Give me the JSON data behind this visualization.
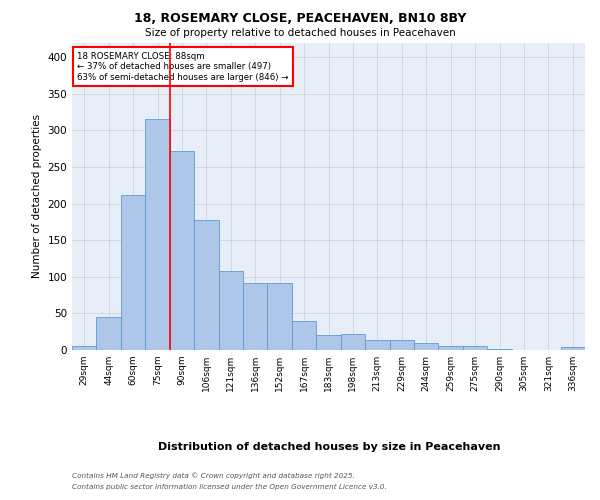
{
  "title_line1": "18, ROSEMARY CLOSE, PEACEHAVEN, BN10 8BY",
  "title_line2": "Size of property relative to detached houses in Peacehaven",
  "xlabel": "Distribution of detached houses by size in Peacehaven",
  "ylabel": "Number of detached properties",
  "categories": [
    "29sqm",
    "44sqm",
    "60sqm",
    "75sqm",
    "90sqm",
    "106sqm",
    "121sqm",
    "136sqm",
    "152sqm",
    "167sqm",
    "183sqm",
    "198sqm",
    "213sqm",
    "229sqm",
    "244sqm",
    "259sqm",
    "275sqm",
    "290sqm",
    "305sqm",
    "321sqm",
    "336sqm"
  ],
  "values": [
    5,
    45,
    212,
    315,
    272,
    178,
    108,
    91,
    91,
    40,
    21,
    22,
    13,
    13,
    10,
    5,
    5,
    2,
    0,
    0,
    4
  ],
  "bar_color": "#aec6e8",
  "bar_edge_color": "#5b9bd5",
  "grid_color": "#cccccc",
  "annotation_line_color": "red",
  "ref_line_x": 3.5,
  "annotation_text_line1": "18 ROSEMARY CLOSE: 88sqm",
  "annotation_text_line2": "← 37% of detached houses are smaller (497)",
  "annotation_text_line3": "63% of semi-detached houses are larger (846) →",
  "footer_line1": "Contains HM Land Registry data © Crown copyright and database right 2025.",
  "footer_line2": "Contains public sector information licensed under the Open Government Licence v3.0.",
  "ylim": [
    0,
    420
  ],
  "yticks": [
    0,
    50,
    100,
    150,
    200,
    250,
    300,
    350,
    400
  ],
  "plot_bg_color": "#e8eef7",
  "fig_bg_color": "#ffffff"
}
